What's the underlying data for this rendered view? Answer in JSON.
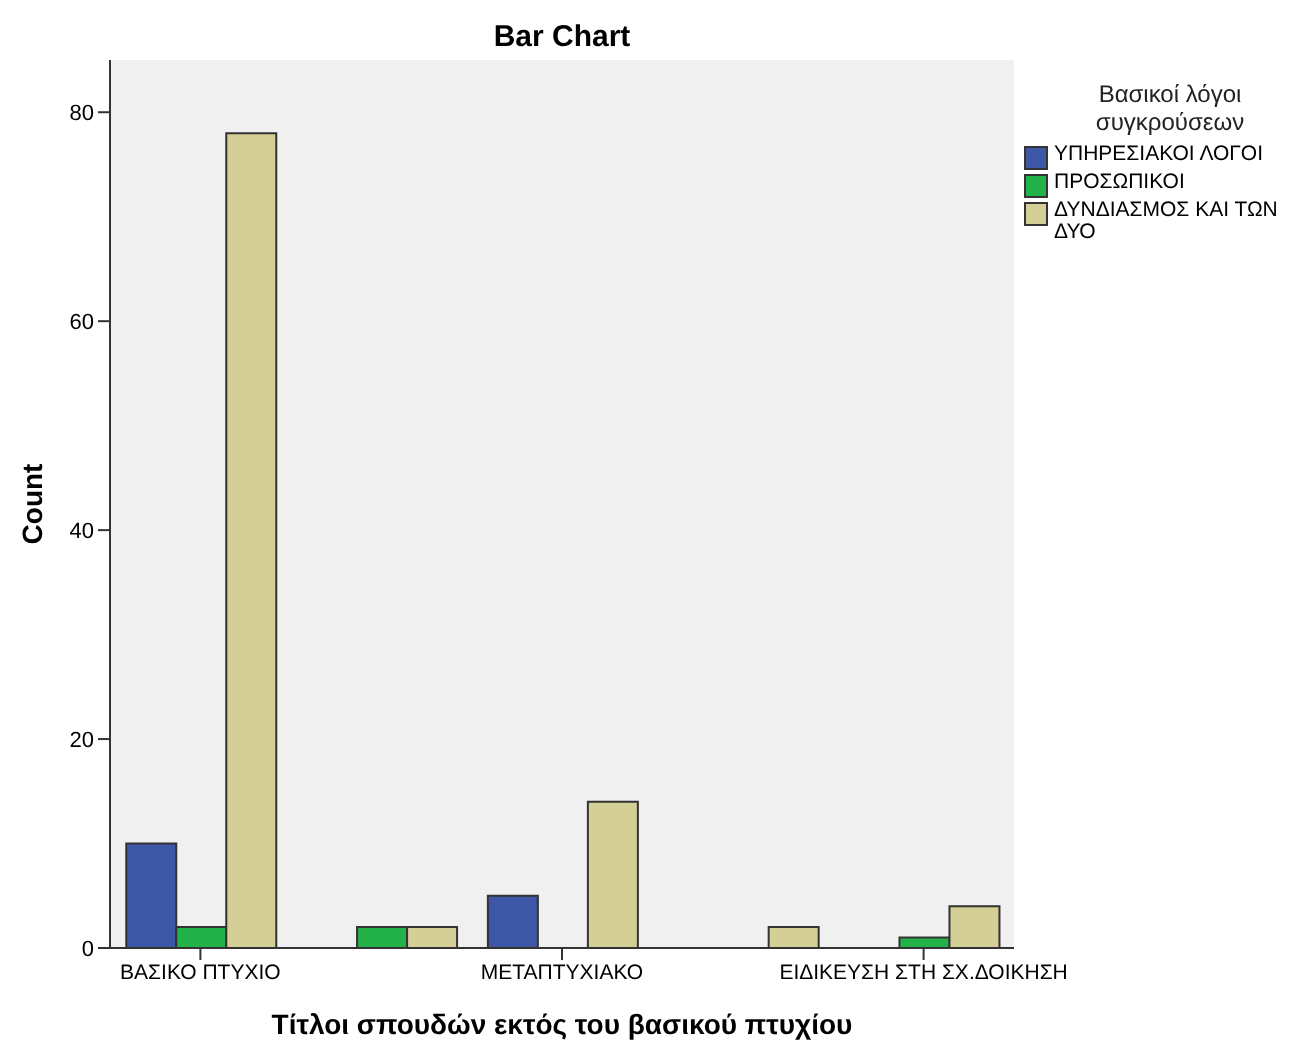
{
  "chart_data": {
    "type": "bar",
    "title": "Bar Chart",
    "xlabel": "Τίτλοι σπουδών εκτός του βασικού πτυχίου",
    "ylabel": "Count",
    "legend_title": "Βασικοί λόγοι συγκρούσεων",
    "categories": [
      "ΒΑΣΙΚΟ ΠΤΥΧΙΟ",
      null,
      "ΜΕΤΑΠΤΥΧΙΑΚΟ",
      null,
      "ΕΙΔΙΚΕΥΣΗ ΣΤΗ ΣΧ.ΔΟΙΚΗΣΗ"
    ],
    "series": [
      {
        "name": "ΥΠΗΡΕΣΙΑΚΟΙ ΛΟΓΟΙ",
        "color": "#3e56a6",
        "values": [
          10,
          null,
          5,
          null,
          null
        ]
      },
      {
        "name": "ΠΡΟΣΩΠΙΚΟΙ",
        "color": "#23b24a",
        "values": [
          2,
          2,
          null,
          null,
          1
        ]
      },
      {
        "name": "ΔΥΝΔΙΑΣΜΟΣ ΚΑΙ ΤΩΝ ΔΥΟ",
        "color": "#d3cf96",
        "values": [
          78,
          2,
          14,
          2,
          4
        ]
      }
    ],
    "ylim": [
      0,
      85
    ],
    "yticks": [
      0,
      20,
      40,
      60,
      80
    ],
    "grid": false,
    "legend": "top right"
  }
}
